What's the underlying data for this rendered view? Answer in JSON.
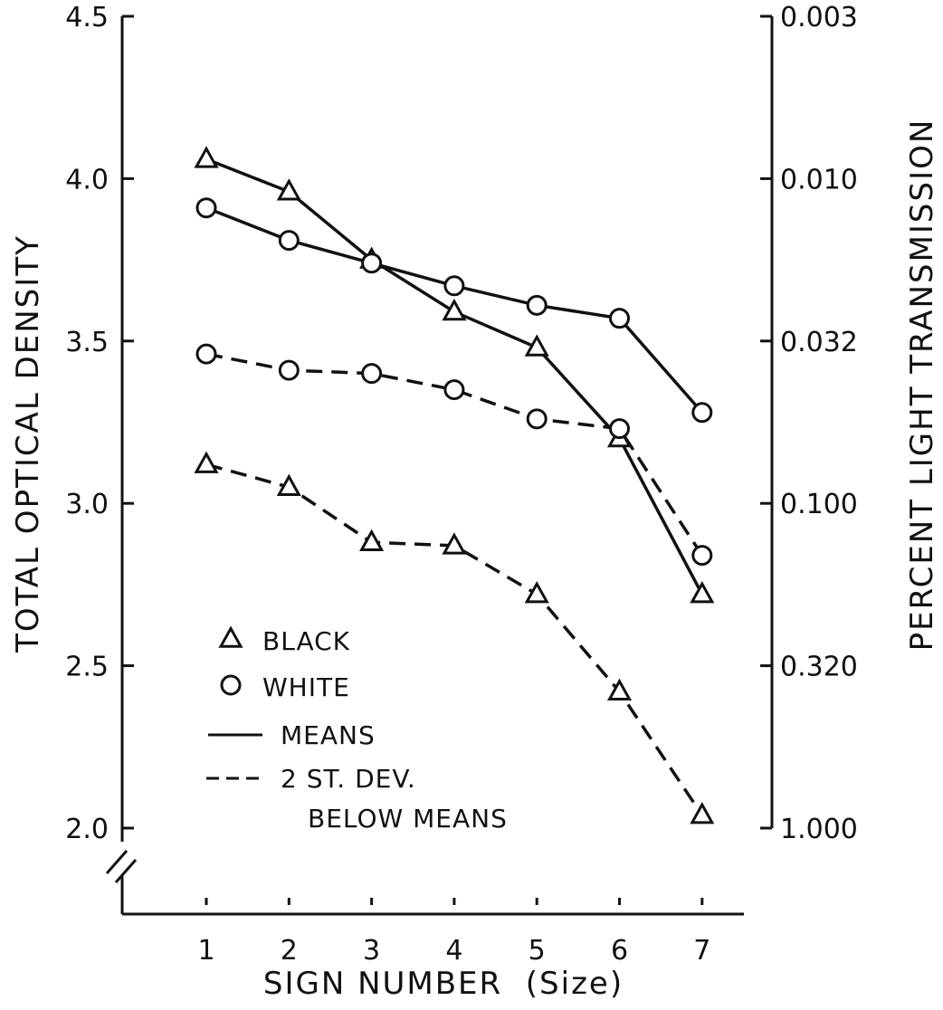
{
  "chart_data": {
    "type": "line",
    "xlabel": "SIGN NUMBER  (Size)",
    "ylabel": "TOTAL OPTICAL DENSITY",
    "y2label": "PERCENT LIGHT TRANSMISSION",
    "x": [
      1,
      2,
      3,
      4,
      5,
      6,
      7
    ],
    "x_tick_labels": [
      "1",
      "2",
      "3",
      "4",
      "5",
      "6",
      "7"
    ],
    "ylim": [
      2.0,
      4.5
    ],
    "y_axis_break": true,
    "y_ticks": [
      2.0,
      2.5,
      3.0,
      3.5,
      4.0,
      4.5
    ],
    "y_tick_labels": [
      "2.0",
      "2.5",
      "3.0",
      "3.5",
      "4.0",
      "4.5"
    ],
    "y2_ticks": [
      {
        "at_density": 4.5,
        "label": "0.003"
      },
      {
        "at_density": 4.0,
        "label": "0.010"
      },
      {
        "at_density": 3.5,
        "label": "0.032"
      },
      {
        "at_density": 3.0,
        "label": "0.100"
      },
      {
        "at_density": 2.5,
        "label": "0.320"
      },
      {
        "at_density": 2.0,
        "label": "1.000"
      }
    ],
    "series": [
      {
        "group": "BLACK",
        "stat": "MEANS",
        "marker": "triangle",
        "line": "solid",
        "values": [
          4.06,
          3.96,
          3.75,
          3.59,
          3.48,
          3.2,
          2.72
        ]
      },
      {
        "group": "WHITE",
        "stat": "MEANS",
        "marker": "circle",
        "line": "solid",
        "values": [
          3.91,
          3.81,
          3.74,
          3.67,
          3.61,
          3.57,
          3.28
        ]
      },
      {
        "group": "WHITE",
        "stat": "2 ST. DEV. BELOW MEANS",
        "marker": "circle",
        "line": "dashed",
        "values": [
          3.46,
          3.41,
          3.4,
          3.35,
          3.26,
          3.23,
          2.84
        ]
      },
      {
        "group": "BLACK",
        "stat": "2 ST. DEV. BELOW MEANS",
        "marker": "triangle",
        "line": "dashed",
        "values": [
          3.12,
          3.05,
          2.88,
          2.87,
          2.72,
          2.42,
          2.04
        ]
      }
    ],
    "legend": {
      "placement": "lower-left",
      "items": [
        {
          "symbol": "triangle",
          "label": "BLACK"
        },
        {
          "symbol": "circle",
          "label": "WHITE"
        },
        {
          "symbol": "solid-line",
          "label": "MEANS"
        },
        {
          "symbol": "dashed-line",
          "label": "2 ST. DEV."
        },
        {
          "symbol": "none",
          "label": "BELOW MEANS"
        }
      ]
    },
    "grid": false
  }
}
